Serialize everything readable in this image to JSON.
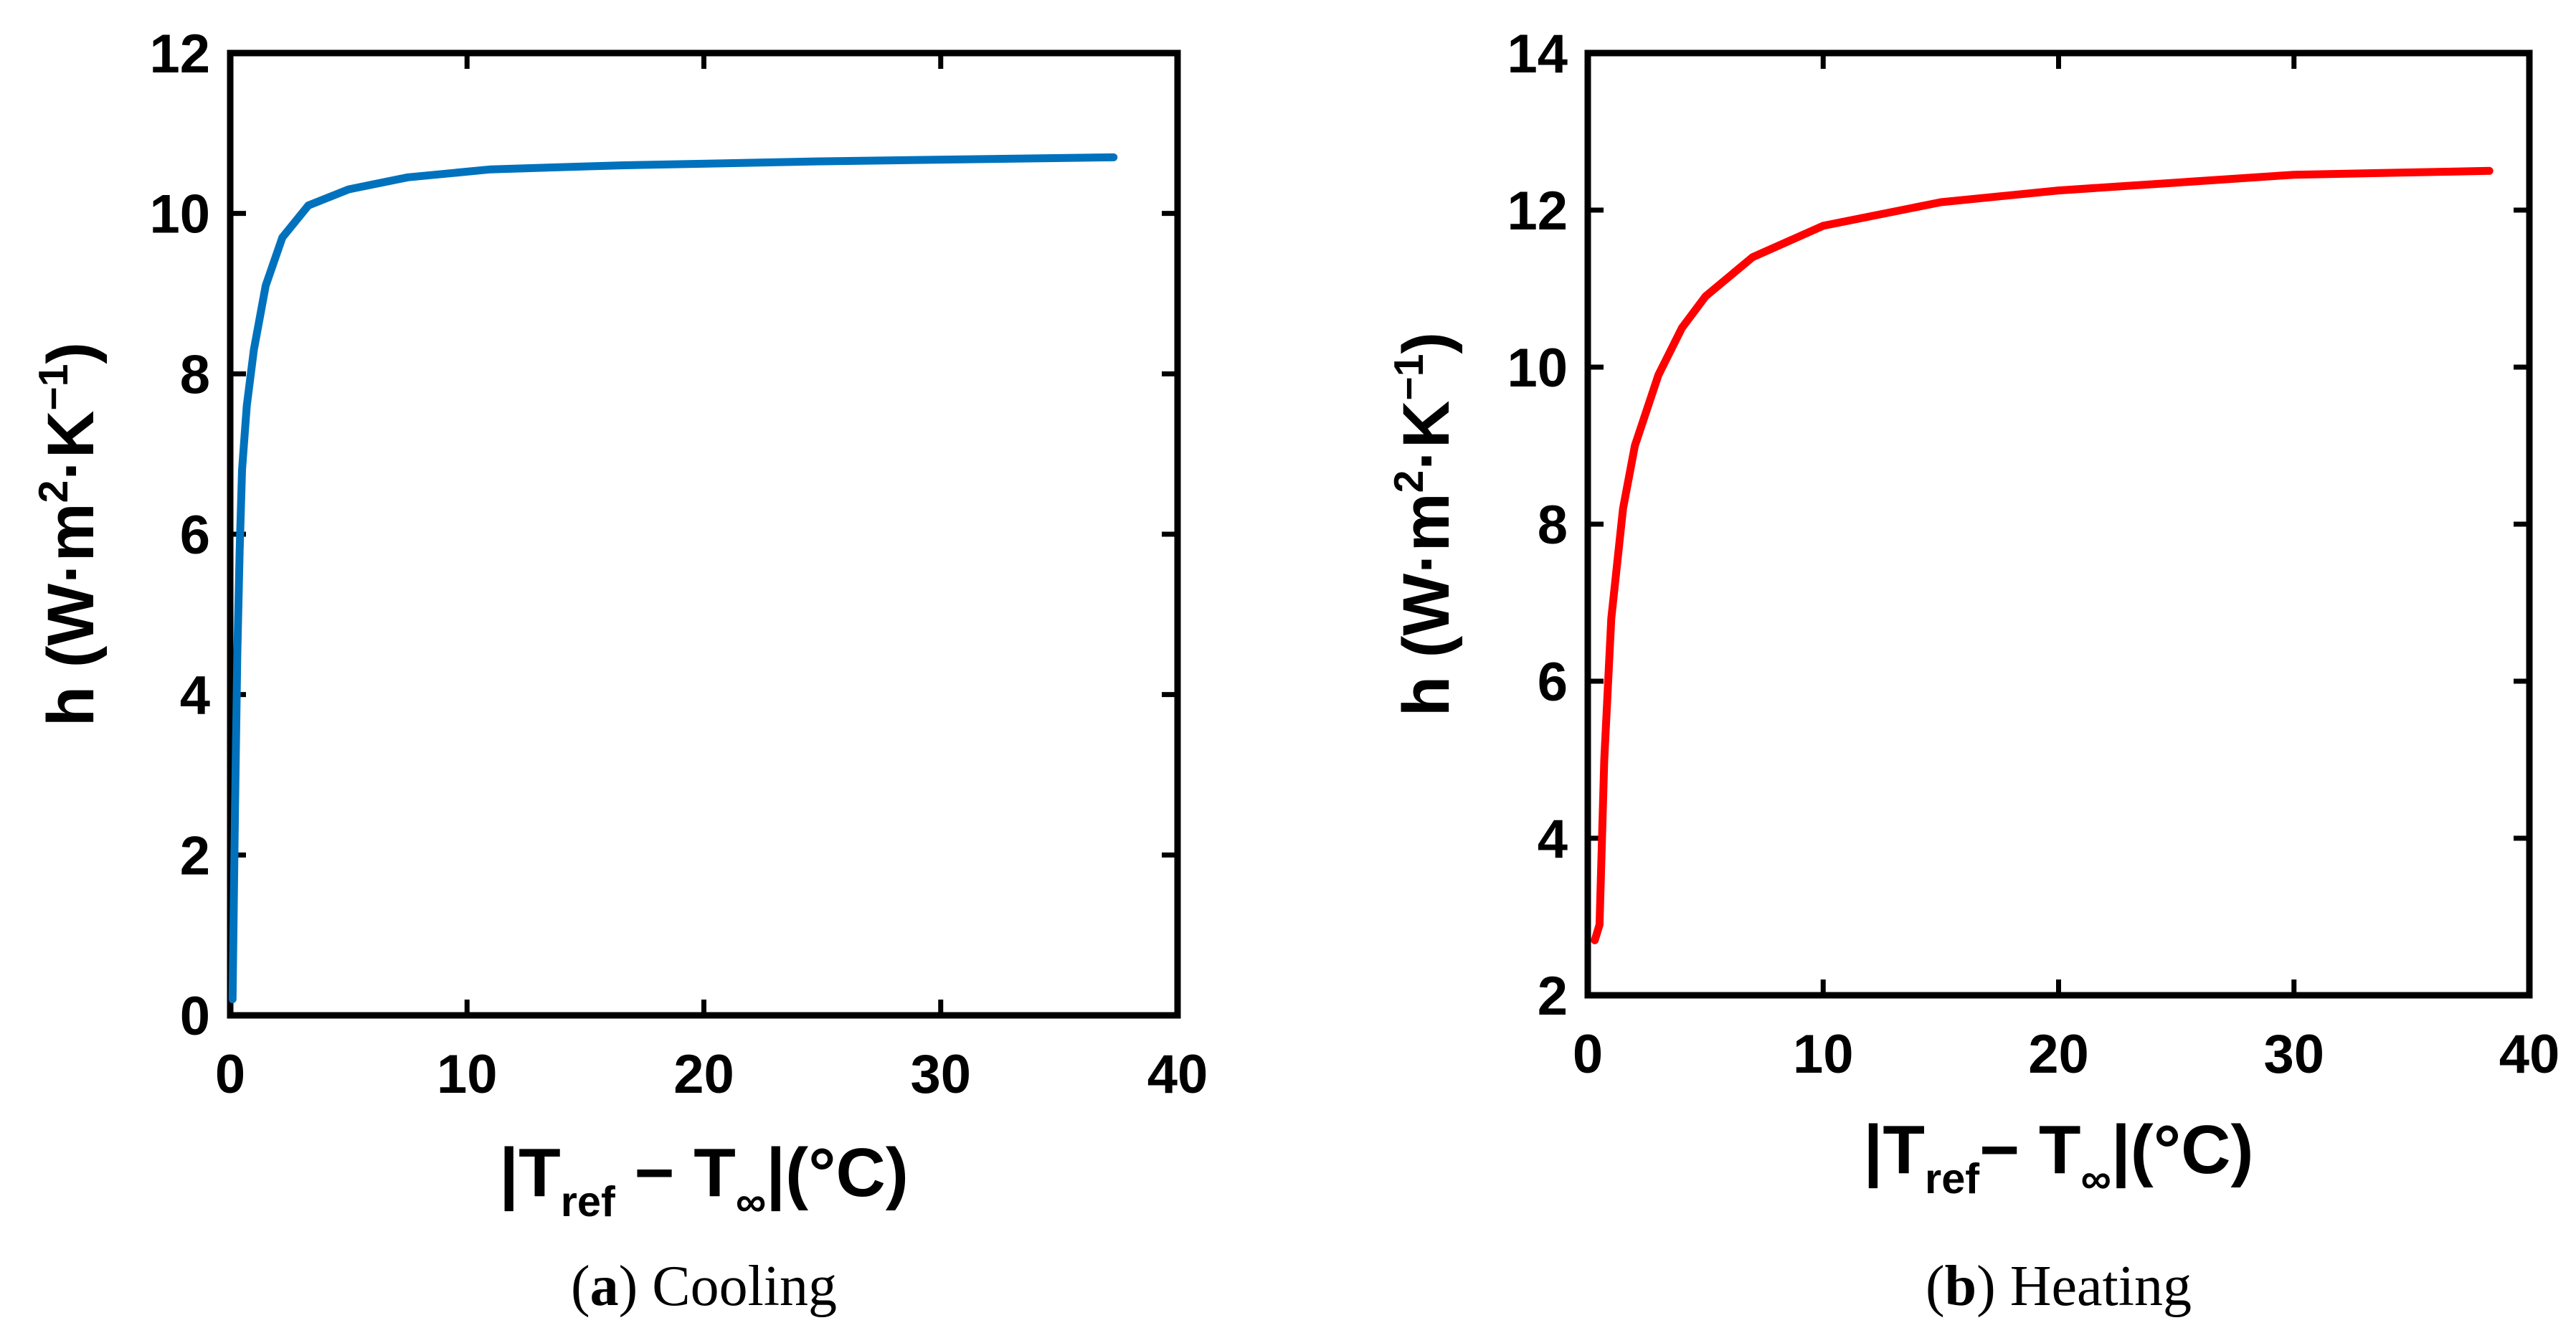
{
  "chart_data": [
    {
      "type": "line",
      "caption_letter": "a",
      "caption_text": "Cooling",
      "xlabel": {
        "prefix": "|T",
        "sub1": "ref",
        "mid": " − T",
        "sub2": "∞",
        "suffix": "|(°C)"
      },
      "ylabel": {
        "prefix": "h (W·m",
        "sup1": "2",
        "mid": "·K",
        "sup2": "−1",
        "suffix": ")"
      },
      "xlim": [
        0,
        40
      ],
      "ylim": [
        0,
        12
      ],
      "xticks": [
        0,
        10,
        20,
        30,
        40
      ],
      "yticks": [
        0,
        2,
        4,
        6,
        8,
        10,
        12
      ],
      "color": "#0072BD",
      "series": [
        {
          "name": "Cooling",
          "x": [
            0.1,
            0.2,
            0.3,
            0.4,
            0.5,
            0.7,
            1.0,
            1.5,
            2.2,
            3.3,
            5.0,
            7.5,
            11,
            16.5,
            25,
            37.3
          ],
          "y": [
            0.2,
            2.5,
            4.5,
            5.8,
            6.8,
            7.6,
            8.3,
            9.1,
            9.7,
            10.1,
            10.3,
            10.45,
            10.55,
            10.6,
            10.65,
            10.7
          ]
        }
      ]
    },
    {
      "type": "line",
      "caption_letter": "b",
      "caption_text": "Heating",
      "xlabel": {
        "prefix": "|T",
        "sub1": "ref",
        "mid": "− T",
        "sub2": "∞",
        "suffix": "|(°C)"
      },
      "ylabel": {
        "prefix": "h (W·m",
        "sup1": "2",
        "mid": "·K",
        "sup2": "−1",
        "suffix": ")"
      },
      "xlim": [
        0,
        40
      ],
      "ylim": [
        2,
        14
      ],
      "xticks": [
        0,
        10,
        20,
        30,
        40
      ],
      "yticks": [
        2,
        4,
        6,
        8,
        10,
        12,
        14
      ],
      "color": "#FF0000",
      "series": [
        {
          "name": "Heating",
          "x": [
            0.3,
            0.5,
            0.7,
            1.0,
            1.5,
            2.0,
            3.0,
            4.0,
            5.0,
            7.0,
            10,
            15,
            20,
            25,
            30,
            38.3
          ],
          "y": [
            2.7,
            2.9,
            5.0,
            6.8,
            8.2,
            9.0,
            9.9,
            10.5,
            10.9,
            11.4,
            11.8,
            12.1,
            12.25,
            12.35,
            12.45,
            12.5
          ]
        }
      ]
    }
  ]
}
